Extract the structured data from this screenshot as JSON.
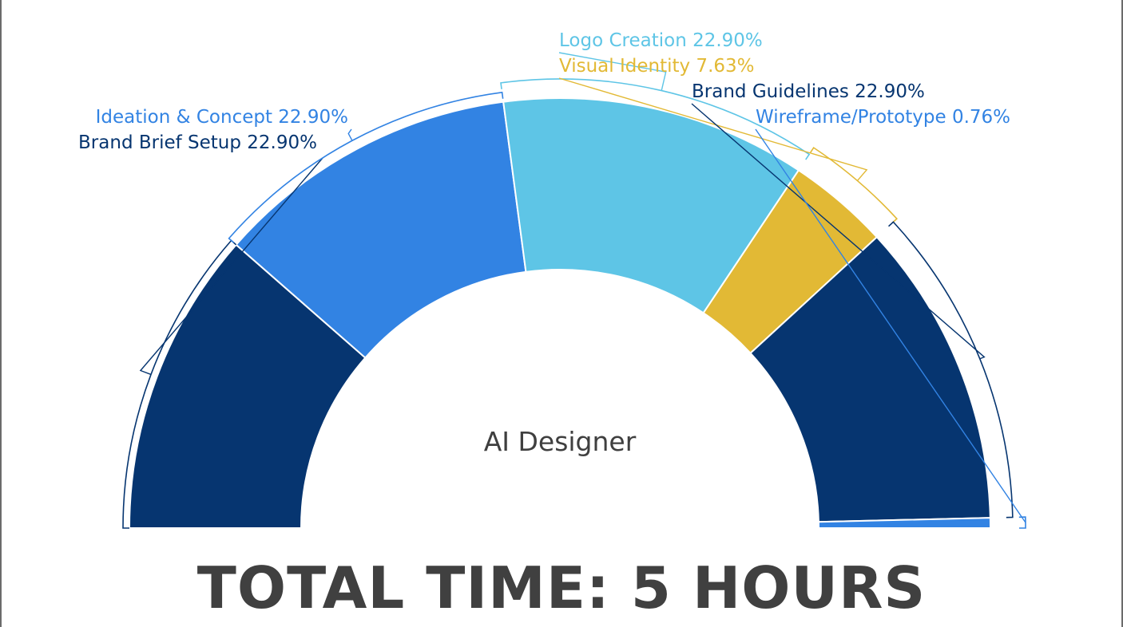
{
  "total_time": "TOTAL TIME: 5 HOURS",
  "chart_data": {
    "type": "pie",
    "subtype": "semi-donut",
    "center_label": "AI Designer",
    "slices": [
      {
        "label": "Brand Brief Setup",
        "value": 22.9,
        "display": "22.90%",
        "color": "#063570"
      },
      {
        "label": "Ideation & Concept",
        "value": 22.9,
        "display": "22.90%",
        "color": "#3283e3"
      },
      {
        "label": "Logo Creation",
        "value": 22.9,
        "display": "22.90%",
        "color": "#5ec5e6"
      },
      {
        "label": "Visual Identity",
        "value": 7.63,
        "display": "7.63%",
        "color": "#e2b935"
      },
      {
        "label": "Brand Guidelines",
        "value": 22.9,
        "display": "22.90%",
        "color": "#063570"
      },
      {
        "label": "Wireframe/Prototype",
        "value": 0.76,
        "display": "0.76%",
        "color": "#3283e3"
      }
    ]
  }
}
